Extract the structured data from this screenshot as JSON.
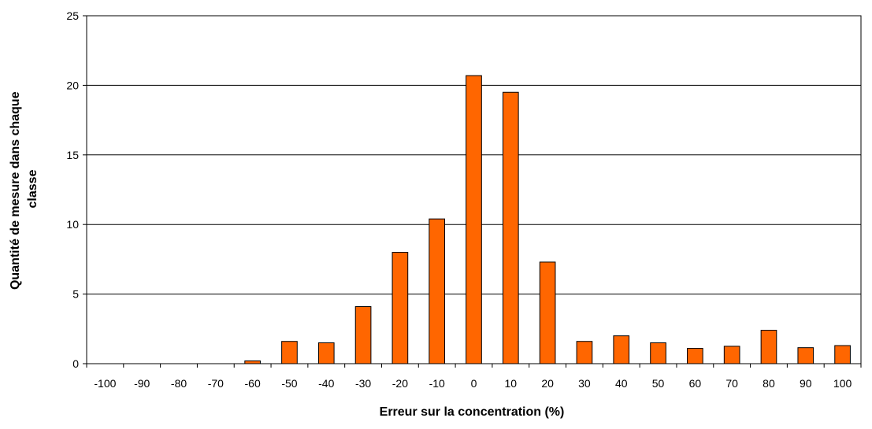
{
  "chart_data": {
    "type": "bar",
    "title": "",
    "xlabel": "Erreur sur la concentration (%)",
    "ylabel_lines": [
      "Quantité de mesure dans chaque",
      "classe"
    ],
    "categories": [
      "-100",
      "-90",
      "-80",
      "-70",
      "-60",
      "-50",
      "-40",
      "-30",
      "-20",
      "-10",
      "0",
      "10",
      "20",
      "30",
      "40",
      "50",
      "60",
      "70",
      "80",
      "90",
      "100"
    ],
    "values": [
      0,
      0,
      0,
      0,
      0.2,
      1.6,
      1.5,
      4.1,
      8.0,
      10.4,
      20.7,
      19.5,
      7.3,
      1.6,
      2.0,
      1.5,
      1.1,
      1.25,
      2.4,
      1.15,
      1.3
    ],
    "ylim": [
      0,
      25
    ],
    "yticks": [
      0,
      5,
      10,
      15,
      20,
      25
    ],
    "grid": true,
    "legend": "none",
    "colors": {
      "bar_fill": "#FF6600",
      "bar_stroke": "#000000",
      "gridline": "#000000",
      "axis": "#000000"
    }
  }
}
